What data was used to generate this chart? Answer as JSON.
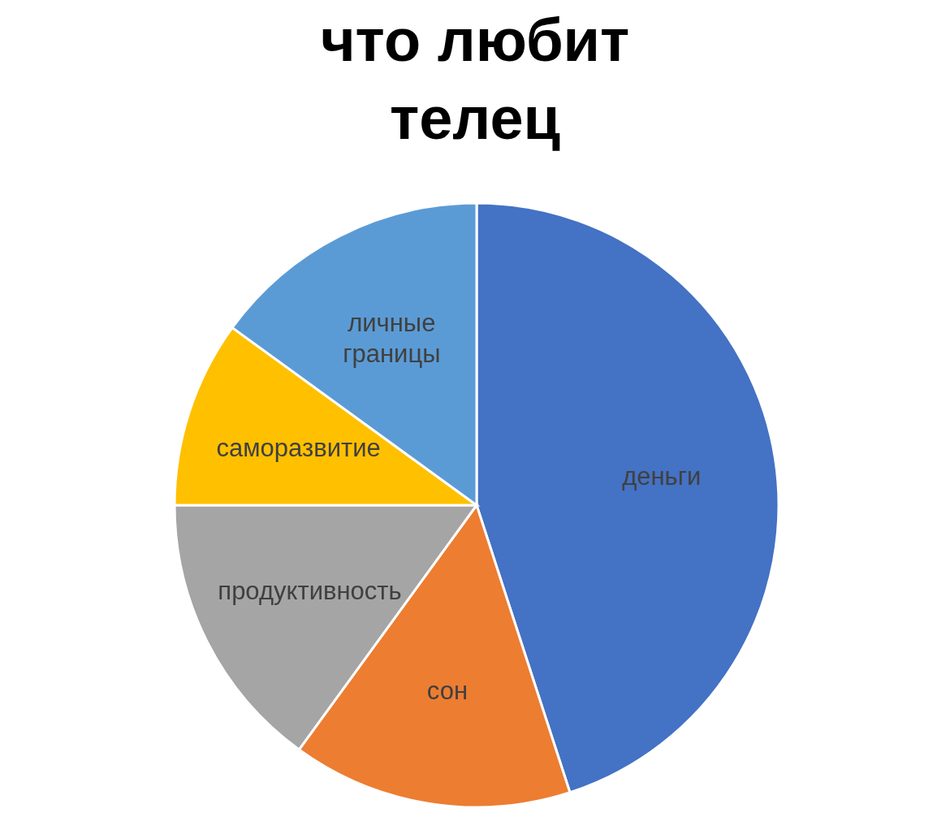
{
  "chart_data": {
    "type": "pie",
    "title": "что любит телец",
    "categories": [
      "деньги",
      "сон",
      "продуктивность",
      "саморазвитие",
      "личные границы"
    ],
    "values": [
      45,
      15,
      15,
      10,
      15
    ],
    "colors": [
      "#4472c4",
      "#ed7d31",
      "#a5a5a5",
      "#ffc000",
      "#5b9bd5"
    ]
  }
}
